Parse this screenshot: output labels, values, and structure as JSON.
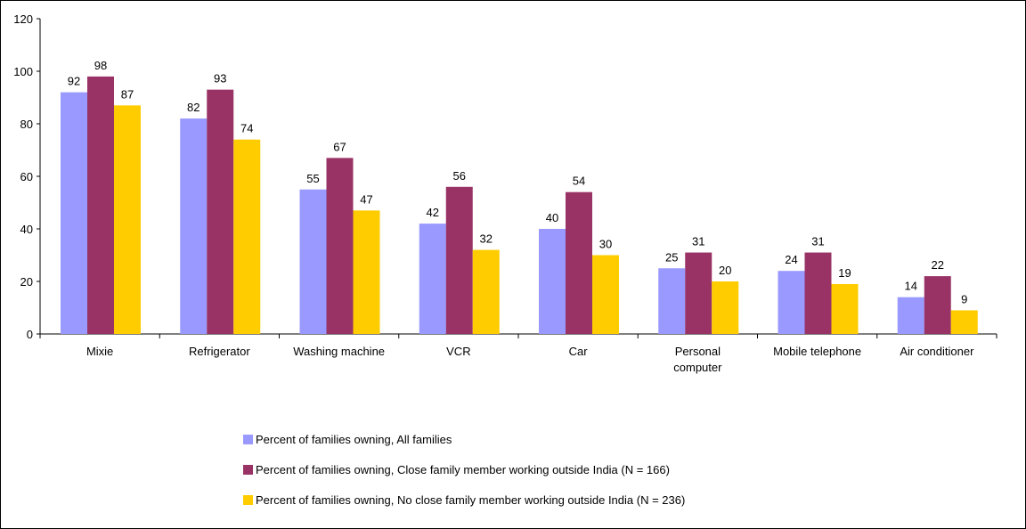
{
  "chart_data": {
    "type": "bar",
    "title": "",
    "xlabel": "",
    "ylabel": "",
    "ylim": [
      0,
      120
    ],
    "yticks": [
      0,
      20,
      40,
      60,
      80,
      100,
      120
    ],
    "grid": false,
    "legend_position": "bottom",
    "categories": [
      [
        "Mixie"
      ],
      [
        "Refrigerator"
      ],
      [
        "Washing machine"
      ],
      [
        "VCR"
      ],
      [
        "Car"
      ],
      [
        "Personal",
        "computer"
      ],
      [
        "Mobile telephone"
      ],
      [
        "Air conditioner"
      ]
    ],
    "series": [
      {
        "name": "Percent of families owning, All families",
        "color": "#9999FF",
        "values": [
          92,
          82,
          55,
          42,
          40,
          25,
          24,
          14
        ]
      },
      {
        "name": "Percent of families owning, Close family member working outside India (N = 166)",
        "color": "#993366",
        "values": [
          98,
          93,
          67,
          56,
          54,
          31,
          31,
          22
        ]
      },
      {
        "name": "Percent of families owning, No close family member working outside India (N = 236)",
        "color": "#FFCC00",
        "values": [
          87,
          74,
          47,
          32,
          30,
          20,
          19,
          9
        ]
      }
    ]
  }
}
